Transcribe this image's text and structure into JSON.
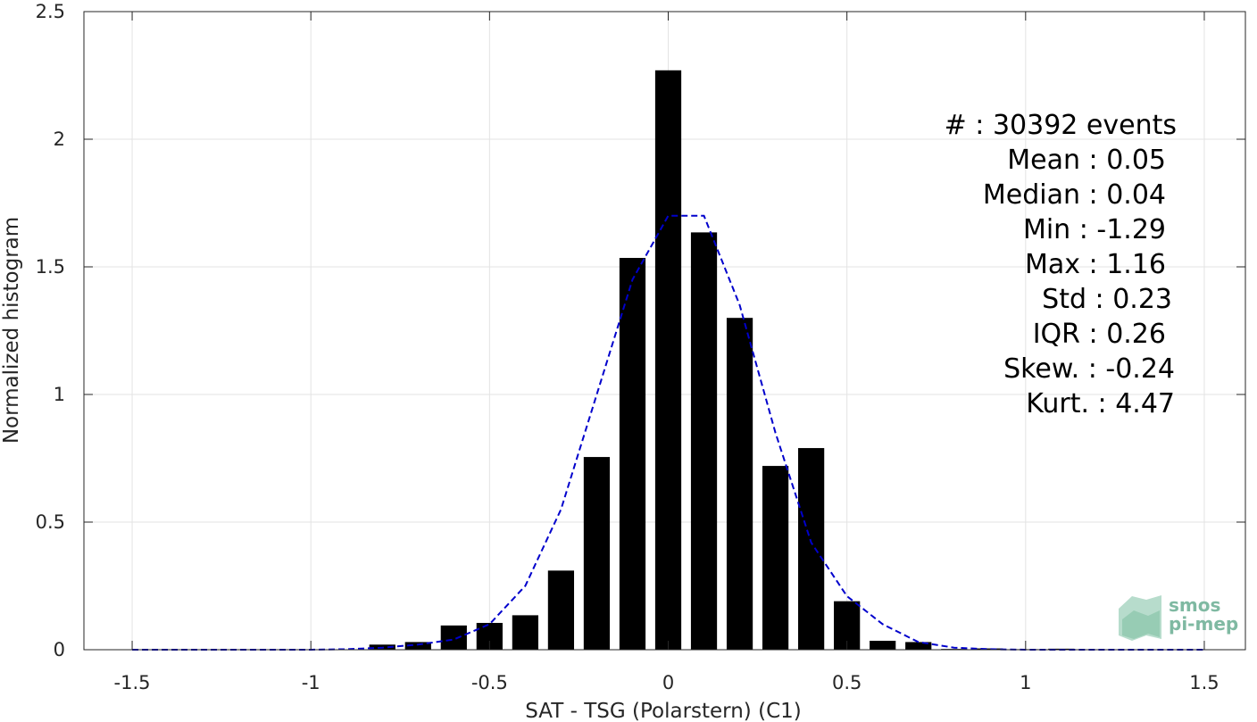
{
  "chart_data": {
    "type": "bar",
    "xlabel": "SAT - TSG (Polarstern) (C1)",
    "ylabel": "Normalized histogram",
    "xlim": [
      -1.5,
      1.5
    ],
    "ylim": [
      0,
      2.5
    ],
    "xticks": [
      "-1.5",
      "-1",
      "-0.5",
      "0",
      "0.5",
      "1",
      "1.5"
    ],
    "yticks": [
      "0",
      "0.5",
      "1",
      "1.5",
      "2",
      "2.5"
    ],
    "grid": true,
    "bar_color": "#000000",
    "bins": {
      "x": [
        -0.8,
        -0.7,
        -0.6,
        -0.5,
        -0.4,
        -0.3,
        -0.2,
        -0.1,
        0.0,
        0.1,
        0.2,
        0.3,
        0.4,
        0.5,
        0.6,
        0.7,
        0.8,
        0.9,
        1.0,
        1.1
      ],
      "values": [
        0.02,
        0.03,
        0.095,
        0.105,
        0.135,
        0.31,
        0.755,
        1.535,
        2.27,
        1.635,
        1.3,
        0.72,
        0.79,
        0.19,
        0.035,
        0.03,
        0.003,
        0.005,
        0.002,
        0.004
      ]
    },
    "fit_curve": {
      "style": "dashed",
      "color": "#0000cc",
      "x": [
        -1.5,
        -1.0,
        -0.9,
        -0.8,
        -0.7,
        -0.6,
        -0.5,
        -0.4,
        -0.3,
        -0.2,
        -0.1,
        0.0,
        0.05,
        0.1,
        0.2,
        0.3,
        0.4,
        0.5,
        0.6,
        0.7,
        0.8,
        0.9,
        1.0,
        1.5
      ],
      "y": [
        0,
        0,
        0.002,
        0.008,
        0.02,
        0.04,
        0.1,
        0.25,
        0.55,
        1.0,
        1.45,
        1.7,
        1.7,
        1.7,
        1.35,
        0.85,
        0.42,
        0.21,
        0.1,
        0.03,
        0.008,
        0.002,
        0,
        0
      ]
    },
    "stats": [
      "#  : 30392 events",
      "Mean : 0.05",
      "Median : 0.04",
      "Min : -1.29",
      "Max : 1.16",
      "Std : 0.23",
      "IQR : 0.26",
      "Skew. : -0.24",
      "Kurt. : 4.47"
    ]
  },
  "logo": {
    "line1": "smos",
    "line2": "pi-mep"
  }
}
